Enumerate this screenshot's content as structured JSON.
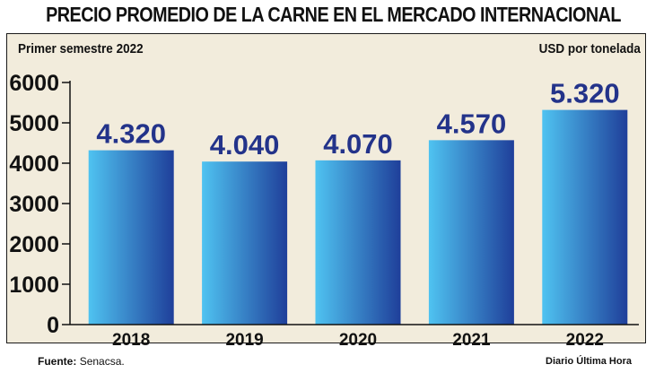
{
  "header": {
    "title": "PRECIO PROMEDIO DE LA CARNE EN EL MERCADO INTERNACIONAL",
    "subtitle": "Primer semestre 2022",
    "unit": "USD por tonelada"
  },
  "footer": {
    "source_label": "Fuente:",
    "source_value": "Senacsa.",
    "credit": "Diario Última Hora"
  },
  "colors": {
    "bar_light": "#4fc3f1",
    "bar_dark": "#1f3f9a",
    "label": "#23338a",
    "background": "#f2ecdc"
  },
  "chart_data": {
    "type": "bar",
    "categories": [
      "2018",
      "2019",
      "2020",
      "2021",
      "2022"
    ],
    "values": [
      4320,
      4040,
      4070,
      4570,
      5320
    ],
    "data_labels": [
      "4.320",
      "4.040",
      "4.070",
      "4.570",
      "5.320"
    ],
    "yticks": [
      "0",
      "1000",
      "2000",
      "3000",
      "4000",
      "5000",
      "6000"
    ],
    "ylim": [
      0,
      6000
    ],
    "title": "PRECIO PROMEDIO DE LA CARNE EN EL MERCADO INTERNACIONAL",
    "subtitle": "Primer semestre 2022",
    "ylabel": "USD por tonelada",
    "xlabel": "",
    "grid": false,
    "legend": "none"
  }
}
